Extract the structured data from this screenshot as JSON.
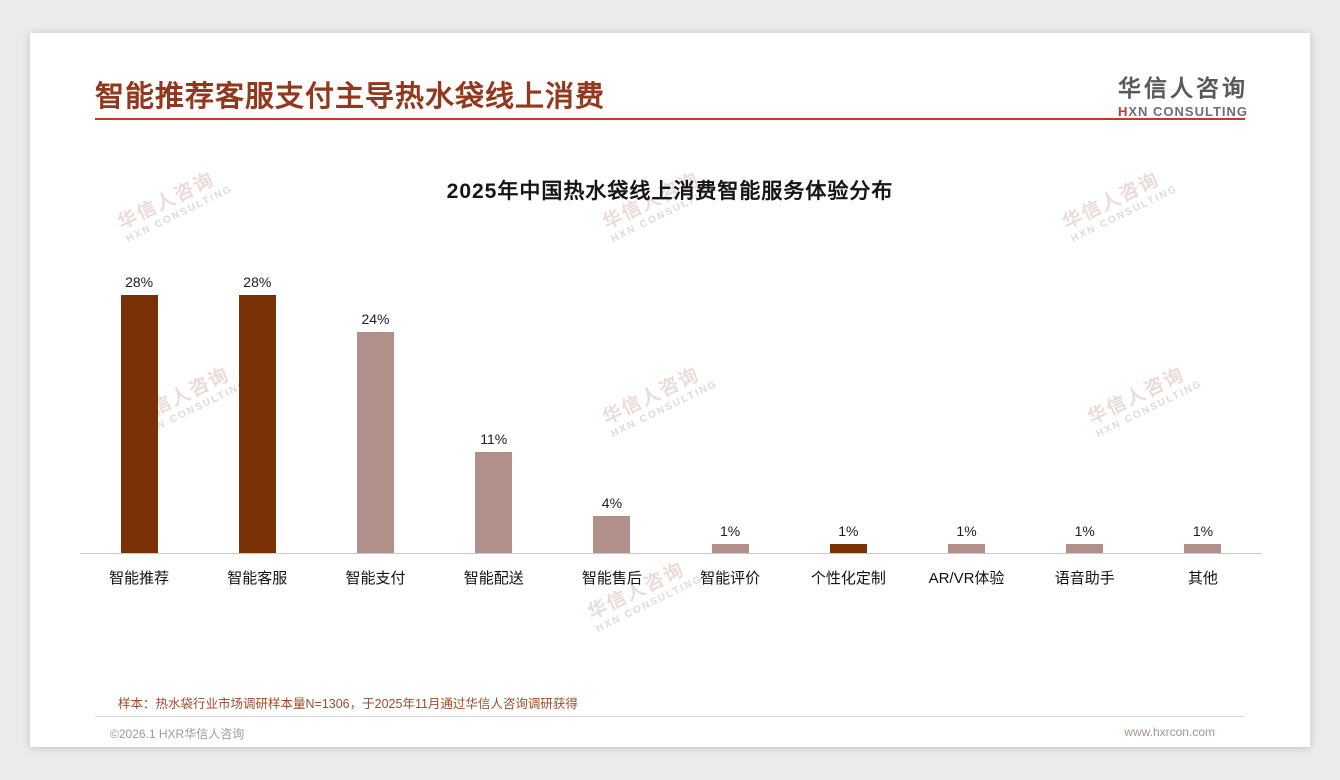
{
  "header": {
    "title": "智能推荐客服支付主导热水袋线上消费"
  },
  "brand": {
    "name": "华信人咨询",
    "initial": "H",
    "rest": "XN CONSULTING"
  },
  "watermark": {
    "line1": "华信人咨询",
    "line2": "HXN CONSULTING"
  },
  "chart_data": {
    "type": "bar",
    "title": "2025年中国热水袋线上消费智能服务体验分布",
    "categories": [
      "智能推荐",
      "智能客服",
      "智能支付",
      "智能配送",
      "智能售后",
      "智能评价",
      "个性化定制",
      "AR/VR体验",
      "语音助手",
      "其他"
    ],
    "values": [
      28,
      28,
      24,
      11,
      4,
      1,
      1,
      1,
      1,
      1
    ],
    "value_labels": [
      "28%",
      "28%",
      "24%",
      "11%",
      "4%",
      "1%",
      "1%",
      "1%",
      "1%",
      "1%"
    ],
    "unit": "%",
    "ylim": [
      0,
      30
    ],
    "grid": false,
    "legend": "none",
    "colors": [
      "dark",
      "dark",
      "light",
      "light",
      "light",
      "light",
      "dark",
      "light",
      "light",
      "light"
    ],
    "palette": {
      "dark": "#7A3106",
      "light": "#B1908A"
    }
  },
  "footnote": "样本：热水袋行业市场调研样本量N=1306，于2025年11月通过华信人咨询调研获得",
  "footer": {
    "left": "©2026.1 HXR华信人咨询",
    "right": "www.hxrcon.com"
  }
}
